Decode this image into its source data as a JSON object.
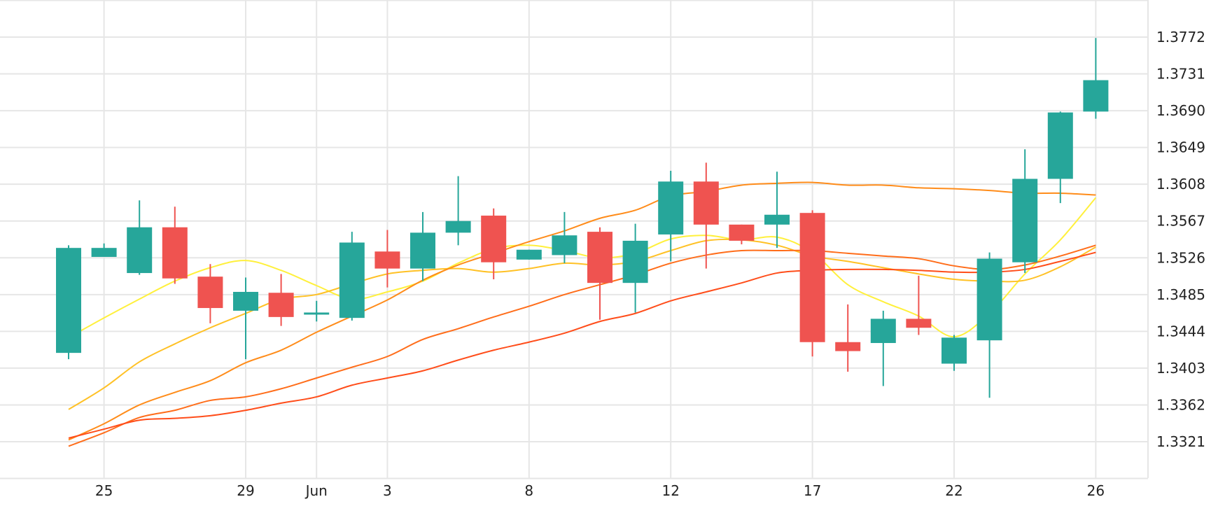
{
  "chart_data": {
    "type": "candlestick",
    "title": "",
    "xlabel": "",
    "ylabel": "",
    "ylim": [
      1.328,
      1.38
    ],
    "grid": true,
    "y_axis_side": "right",
    "y_ticks": [
      "1.3321",
      "1.3362",
      "1.3403",
      "1.3444",
      "1.3485",
      "1.3526",
      "1.3567",
      "1.3608",
      "1.3649",
      "1.3690",
      "1.3731",
      "1.3772"
    ],
    "x_tick_labels": [
      {
        "label": "25",
        "index": 1
      },
      {
        "label": "29",
        "index": 5
      },
      {
        "label": "Jun",
        "index": 7
      },
      {
        "label": "3",
        "index": 9
      },
      {
        "label": "8",
        "index": 13
      },
      {
        "label": "12",
        "index": 17
      },
      {
        "label": "17",
        "index": 21
      },
      {
        "label": "22",
        "index": 25
      },
      {
        "label": "26",
        "index": 29
      }
    ],
    "colors": {
      "up": "#26a69a",
      "down": "#ef5350",
      "grid": "#e6e6e6"
    },
    "candles": [
      {
        "o": 1.342,
        "h": 1.354,
        "l": 1.3413,
        "c": 1.3537
      },
      {
        "o": 1.3527,
        "h": 1.3542,
        "l": 1.3527,
        "c": 1.3537
      },
      {
        "o": 1.3509,
        "h": 1.359,
        "l": 1.3507,
        "c": 1.356
      },
      {
        "o": 1.356,
        "h": 1.3583,
        "l": 1.3497,
        "c": 1.3503
      },
      {
        "o": 1.3505,
        "h": 1.3519,
        "l": 1.3453,
        "c": 1.347
      },
      {
        "o": 1.3467,
        "h": 1.3504,
        "l": 1.3413,
        "c": 1.3488
      },
      {
        "o": 1.3487,
        "h": 1.3508,
        "l": 1.345,
        "c": 1.346
      },
      {
        "o": 1.3465,
        "h": 1.3478,
        "l": 1.3455,
        "c": 1.3465
      },
      {
        "o": 1.3459,
        "h": 1.3555,
        "l": 1.3456,
        "c": 1.3543
      },
      {
        "o": 1.3533,
        "h": 1.3557,
        "l": 1.3493,
        "c": 1.3514
      },
      {
        "o": 1.3514,
        "h": 1.3577,
        "l": 1.35,
        "c": 1.3554
      },
      {
        "o": 1.3554,
        "h": 1.3617,
        "l": 1.354,
        "c": 1.3567
      },
      {
        "o": 1.3573,
        "h": 1.3581,
        "l": 1.3502,
        "c": 1.3521
      },
      {
        "o": 1.3524,
        "h": 1.3535,
        "l": 1.3524,
        "c": 1.3535
      },
      {
        "o": 1.3529,
        "h": 1.3577,
        "l": 1.352,
        "c": 1.3551
      },
      {
        "o": 1.3555,
        "h": 1.356,
        "l": 1.3457,
        "c": 1.3498
      },
      {
        "o": 1.3498,
        "h": 1.3564,
        "l": 1.3465,
        "c": 1.3545
      },
      {
        "o": 1.3552,
        "h": 1.3623,
        "l": 1.3522,
        "c": 1.3611
      },
      {
        "o": 1.3611,
        "h": 1.3632,
        "l": 1.3514,
        "c": 1.3563
      },
      {
        "o": 1.3563,
        "h": 1.3563,
        "l": 1.3541,
        "c": 1.3545
      },
      {
        "o": 1.3563,
        "h": 1.3622,
        "l": 1.3537,
        "c": 1.3574
      },
      {
        "o": 1.3576,
        "h": 1.3579,
        "l": 1.3416,
        "c": 1.3432
      },
      {
        "o": 1.3432,
        "h": 1.3474,
        "l": 1.3399,
        "c": 1.3422
      },
      {
        "o": 1.3431,
        "h": 1.3467,
        "l": 1.3383,
        "c": 1.3458
      },
      {
        "o": 1.3458,
        "h": 1.3506,
        "l": 1.344,
        "c": 1.3448
      },
      {
        "o": 1.3408,
        "h": 1.344,
        "l": 1.34,
        "c": 1.3437
      },
      {
        "o": 1.3434,
        "h": 1.3532,
        "l": 1.337,
        "c": 1.3525
      },
      {
        "o": 1.3521,
        "h": 1.3647,
        "l": 1.3509,
        "c": 1.3614
      },
      {
        "o": 1.3614,
        "h": 1.3689,
        "l": 1.3587,
        "c": 1.3688
      },
      {
        "o": 1.3689,
        "h": 1.3771,
        "l": 1.3681,
        "c": 1.3724
      }
    ],
    "moving_averages": [
      {
        "color": "#fff03c",
        "values": [
          1.3437,
          1.3459,
          1.348,
          1.35,
          1.3515,
          1.3523,
          1.3512,
          1.3495,
          1.348,
          1.3488,
          1.35,
          1.352,
          1.3536,
          1.354,
          1.3534,
          1.3526,
          1.3531,
          1.3547,
          1.3551,
          1.3546,
          1.3549,
          1.3532,
          1.3496,
          1.3477,
          1.3461,
          1.3438,
          1.3464,
          1.3508,
          1.3546,
          1.3593
        ]
      },
      {
        "color": "#ffc125",
        "values": [
          1.3357,
          1.3381,
          1.341,
          1.343,
          1.3448,
          1.3464,
          1.348,
          1.3485,
          1.3497,
          1.3508,
          1.3512,
          1.3514,
          1.351,
          1.3514,
          1.352,
          1.3518,
          1.3522,
          1.3534,
          1.3545,
          1.3546,
          1.354,
          1.3528,
          1.3522,
          1.3515,
          1.3508,
          1.3502,
          1.35,
          1.3501,
          1.3516,
          1.3538
        ]
      },
      {
        "color": "#ff8c1a",
        "values": [
          1.3323,
          1.3341,
          1.3362,
          1.3376,
          1.3389,
          1.3409,
          1.3423,
          1.3443,
          1.3461,
          1.3479,
          1.3501,
          1.3518,
          1.3531,
          1.3544,
          1.3556,
          1.357,
          1.3579,
          1.3595,
          1.36,
          1.3607,
          1.3609,
          1.361,
          1.3607,
          1.3607,
          1.3604,
          1.3603,
          1.3601,
          1.3598,
          1.3598,
          1.3596
        ]
      },
      {
        "color": "#ff6d1a",
        "values": [
          1.3316,
          1.3331,
          1.3348,
          1.3356,
          1.3367,
          1.3371,
          1.338,
          1.3392,
          1.3404,
          1.3416,
          1.3435,
          1.3447,
          1.346,
          1.3472,
          1.3485,
          1.3496,
          1.3507,
          1.352,
          1.3529,
          1.3534,
          1.3534,
          1.3534,
          1.3531,
          1.3528,
          1.3525,
          1.3517,
          1.3513,
          1.3518,
          1.3528,
          1.354
        ]
      },
      {
        "color": "#ff4d1a",
        "values": [
          1.3325,
          1.3335,
          1.3345,
          1.3347,
          1.335,
          1.3356,
          1.3364,
          1.3371,
          1.3384,
          1.3392,
          1.34,
          1.3412,
          1.3423,
          1.3432,
          1.3442,
          1.3455,
          1.3464,
          1.3478,
          1.3488,
          1.3498,
          1.3509,
          1.3512,
          1.3513,
          1.3513,
          1.3512,
          1.351,
          1.351,
          1.3513,
          1.3522,
          1.3532
        ]
      }
    ]
  }
}
